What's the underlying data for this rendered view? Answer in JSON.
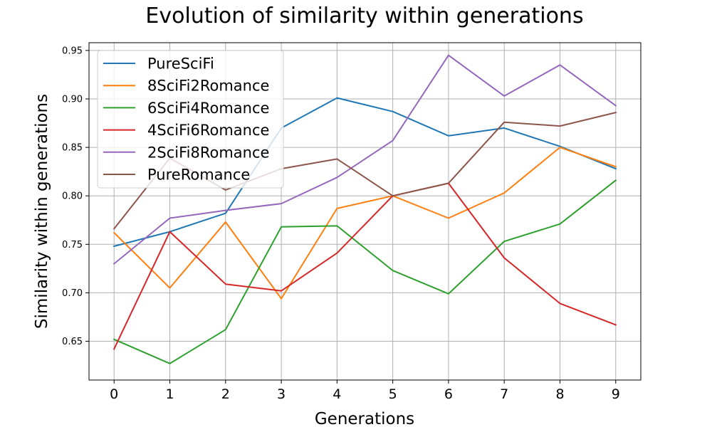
{
  "chart_data": {
    "type": "line",
    "title": "Evolution of similarity within generations",
    "xlabel": "Generations",
    "ylabel": "Similarity within generations",
    "x": [
      0,
      1,
      2,
      3,
      4,
      5,
      6,
      7,
      8,
      9
    ],
    "xlim": [
      -0.45,
      9.45
    ],
    "ylim": [
      0.61,
      0.958
    ],
    "yticks": [
      0.65,
      0.7,
      0.75,
      0.8,
      0.85,
      0.9,
      0.95
    ],
    "ytick_labels": [
      "0.65",
      "0.70",
      "0.75",
      "0.80",
      "0.85",
      "0.90",
      "0.95"
    ],
    "xtick_labels": [
      "0",
      "1",
      "2",
      "3",
      "4",
      "5",
      "6",
      "7",
      "8",
      "9"
    ],
    "grid": true,
    "legend_position": "top-left",
    "series": [
      {
        "name": "PureSciFi",
        "color": "#1f77b4",
        "values": [
          0.748,
          0.763,
          0.782,
          0.87,
          0.901,
          0.887,
          0.862,
          0.87,
          0.851,
          0.828
        ]
      },
      {
        "name": "8SciFi2Romance",
        "color": "#ff7f0e",
        "values": [
          0.762,
          0.705,
          0.773,
          0.694,
          0.787,
          0.8,
          0.777,
          0.803,
          0.85,
          0.83
        ]
      },
      {
        "name": "6SciFi4Romance",
        "color": "#2ca02c",
        "values": [
          0.652,
          0.627,
          0.662,
          0.768,
          0.769,
          0.723,
          0.699,
          0.753,
          0.771,
          0.816
        ]
      },
      {
        "name": "4SciFi6Romance",
        "color": "#d62728",
        "values": [
          0.642,
          0.763,
          0.709,
          0.702,
          0.741,
          0.8,
          0.813,
          0.736,
          0.689,
          0.667
        ]
      },
      {
        "name": "2SciFi8Romance",
        "color": "#9467bd",
        "values": [
          0.73,
          0.777,
          0.785,
          0.792,
          0.819,
          0.857,
          0.945,
          0.903,
          0.935,
          0.893
        ]
      },
      {
        "name": "PureRomance",
        "color": "#8c564b",
        "values": [
          0.766,
          0.839,
          0.806,
          0.828,
          0.838,
          0.8,
          0.813,
          0.876,
          0.872,
          0.886
        ]
      }
    ]
  }
}
